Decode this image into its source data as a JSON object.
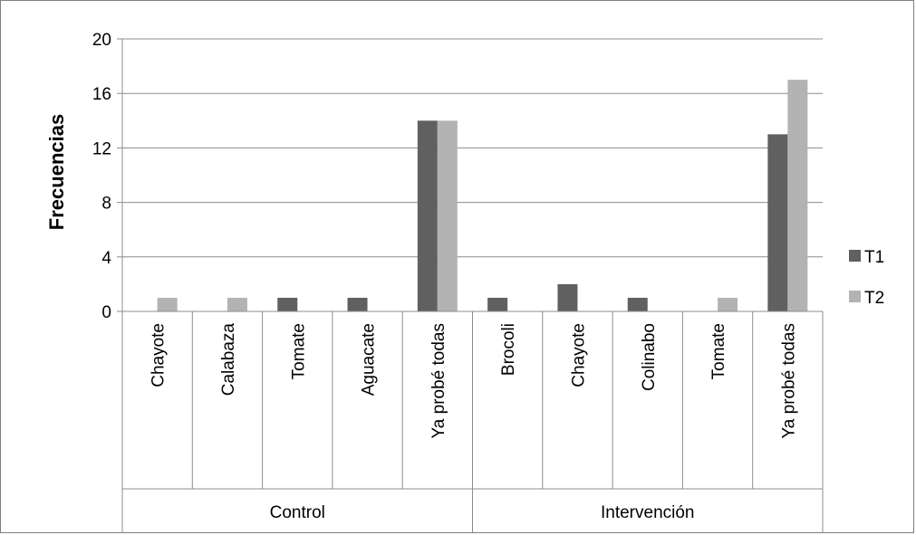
{
  "chart_data": {
    "type": "bar",
    "title": "",
    "xlabel": "",
    "ylabel": "Frecuencias",
    "ylim": [
      0,
      20
    ],
    "yticks": [
      0,
      4,
      8,
      12,
      16,
      20
    ],
    "grid": true,
    "legend_position": "right",
    "groups": [
      {
        "label": "Control",
        "categories": [
          "Chayote",
          "Calabaza",
          "Tomate",
          "Aguacate",
          "Ya probé todas"
        ]
      },
      {
        "label": "Intervención",
        "categories": [
          "Brocoli",
          "Chayote",
          "Colinabo",
          "Tomate",
          "Ya probé todas"
        ]
      }
    ],
    "categories": [
      "Chayote",
      "Calabaza",
      "Tomate",
      "Aguacate",
      "Ya probé todas",
      "Brocoli",
      "Chayote",
      "Colinabo",
      "Tomate",
      "Ya probé todas"
    ],
    "series": [
      {
        "name": "T1",
        "color": "#606060",
        "values": [
          0,
          0,
          1,
          1,
          14,
          1,
          2,
          1,
          0,
          13
        ]
      },
      {
        "name": "T2",
        "color": "#b3b3b3",
        "values": [
          1,
          1,
          0,
          0,
          14,
          0,
          0,
          0,
          1,
          17
        ]
      }
    ]
  }
}
